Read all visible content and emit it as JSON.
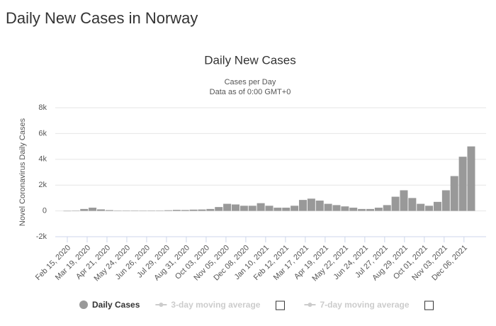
{
  "header": {
    "title": "Daily New Cases in Norway"
  },
  "chart_data": {
    "type": "bar",
    "title": "Daily New Cases",
    "subtitle": [
      "Cases per Day",
      "Data as of 0:00 GMT+0"
    ],
    "y_label": "Novel Coronavirus Daily Cases",
    "x": [
      "Feb 15, 2020",
      "Feb 29, 2020",
      "Mar 14, 2020",
      "Mar 28, 2020",
      "Apr 11, 2020",
      "Apr 25, 2020",
      "May 09, 2020",
      "May 23, 2020",
      "Jun 06, 2020",
      "Jun 20, 2020",
      "Jul 04, 2020",
      "Jul 18, 2020",
      "Aug 01, 2020",
      "Aug 15, 2020",
      "Aug 29, 2020",
      "Sep 12, 2020",
      "Sep 26, 2020",
      "Oct 10, 2020",
      "Oct 24, 2020",
      "Nov 07, 2020",
      "Nov 21, 2020",
      "Dec 05, 2020",
      "Dec 19, 2020",
      "Jan 02, 2021",
      "Jan 16, 2021",
      "Jan 30, 2021",
      "Feb 13, 2021",
      "Feb 27, 2021",
      "Mar 13, 2021",
      "Mar 27, 2021",
      "Apr 10, 2021",
      "Apr 24, 2021",
      "May 08, 2021",
      "May 22, 2021",
      "Jun 05, 2021",
      "Jun 19, 2021",
      "Jul 03, 2021",
      "Jul 17, 2021",
      "Jul 31, 2021",
      "Aug 14, 2021",
      "Aug 28, 2021",
      "Sep 11, 2021",
      "Sep 25, 2021",
      "Oct 09, 2021",
      "Oct 23, 2021",
      "Nov 06, 2021",
      "Nov 20, 2021",
      "Dec 04, 2021",
      "Dec 18, 2021"
    ],
    "series": [
      {
        "name": "Daily Cases",
        "color": "#999999",
        "values": [
          0,
          10,
          150,
          250,
          120,
          60,
          20,
          15,
          15,
          10,
          15,
          20,
          50,
          80,
          70,
          100,
          110,
          150,
          300,
          550,
          500,
          400,
          400,
          600,
          400,
          250,
          250,
          400,
          850,
          950,
          800,
          550,
          450,
          350,
          250,
          150,
          150,
          250,
          450,
          1100,
          1600,
          1000,
          550,
          400,
          700,
          1600,
          2700,
          4200,
          5000
        ]
      }
    ],
    "hidden_series": [
      {
        "name": "3-day moving average",
        "color": "#cccccc"
      },
      {
        "name": "7-day moving average",
        "color": "#cccccc"
      }
    ],
    "xlim": [
      "Feb 15, 2020",
      "Dec 31, 2021"
    ],
    "xticks": [
      "Feb 15, 2020",
      "Mar 19, 2020",
      "Apr 21, 2020",
      "May 24, 2020",
      "Jun 26, 2020",
      "Jul 29, 2020",
      "Aug 31, 2020",
      "Oct 03, 2020",
      "Nov 05, 2020",
      "Dec 08, 2020",
      "Jan 10, 2021",
      "Feb 12, 2021",
      "Mar 17, 2021",
      "Apr 19, 2021",
      "May 22, 2021",
      "Jun 24, 2021",
      "Jul 27, 2021",
      "Aug 29, 2021",
      "Oct 01, 2021",
      "Nov 03, 2021",
      "Dec 06, 2021"
    ],
    "ylim": [
      -2000,
      8000
    ],
    "yticks": [
      {
        "value": -2000,
        "label": "-2k"
      },
      0,
      {
        "value": 2000,
        "label": "2k"
      },
      {
        "value": 4000,
        "label": "4k"
      },
      {
        "value": 6000,
        "label": "6k"
      },
      {
        "value": 8000,
        "label": "8k"
      }
    ],
    "grid": true
  }
}
